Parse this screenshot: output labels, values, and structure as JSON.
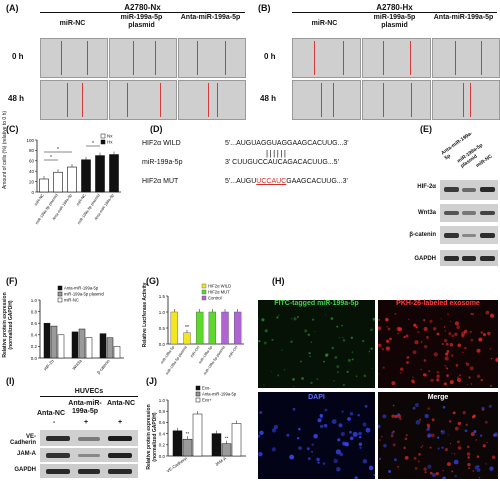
{
  "panels": {
    "A": {
      "label": "(A)",
      "title": "A2780-Nx",
      "cols": [
        "miR-NC",
        "miR-199a-5p plasmid",
        "Anta-miR-199a-5p"
      ],
      "rows": [
        "0 h",
        "48 h"
      ]
    },
    "B": {
      "label": "(B)",
      "title": "A2780-Hx",
      "cols": [
        "miR-NC",
        "miR-199a-5p plasmid",
        "Anta-miR-199a-5p"
      ],
      "rows": [
        "0 h",
        "48 h"
      ]
    },
    "C": {
      "label": "(C)",
      "ylabel": "Amount of cells (%) (relative to 0 h)",
      "legend": [
        "Nx",
        "Hx"
      ],
      "sig": "*"
    },
    "D": {
      "label": "(D)",
      "rows": [
        {
          "name": "HIF2α WILD",
          "seq": "5'...AUGUAGGUAGGAAGCACUUG...3'"
        },
        {
          "name": "",
          "seq": "||||||"
        },
        {
          "name": "miR-199a-5p",
          "seq": "3'  CUUGUCCAUCAGACACUUG...5'"
        },
        {
          "name": "HIF2α MUT",
          "seq_pre": "5'...AUGU",
          "seq_mut": "UCCAUC",
          "seq_post": "GAAGCACUUG...3'"
        }
      ]
    },
    "E": {
      "label": "(E)",
      "cols": [
        "Anta-miR-199a-5p",
        "miR-199a-5p plasmid",
        "miR-NC"
      ],
      "rows": [
        "HIF-2α",
        "Wnt3a",
        "β-catenin",
        "GAPDH"
      ]
    },
    "F": {
      "label": "(F)",
      "ylabel": "Relative protein expression (normalized GAPDH)",
      "legend": [
        "Anta-miR-199a-5p",
        "miR-199a-5p plasmid",
        "miR-NC"
      ],
      "categories": [
        "HIF-2α",
        "Wnt3a",
        "β-catenin"
      ]
    },
    "G": {
      "label": "(G)",
      "ylabel": "Relative Luciferase Activity",
      "legend": [
        "HIF2α WILD",
        "HIF2α MUT",
        "Control"
      ],
      "sig": "**"
    },
    "H": {
      "label": "(H)",
      "tiles": [
        "FITC-tagged miR-199a-5p",
        "PKH-26-labeled exosome",
        "DAPI",
        "Merge"
      ]
    },
    "I": {
      "label": "(I)",
      "header": "HUVECs",
      "cols": [
        "Anta-NC",
        "Anta-miR-199a-5p",
        "Anta-NC"
      ],
      "signs": [
        "-",
        "+",
        "+"
      ],
      "rows": [
        "VE-Cadherin",
        "JAM-A",
        "GAPDH"
      ]
    },
    "J": {
      "label": "(J)",
      "ylabel": "Relative protein expression (normalized GAPDH)",
      "legend": [
        "Exo-",
        "Anta-miR-199a-5p",
        "Exo+"
      ],
      "categories": [
        "VE-Cadherin",
        "JAM-A"
      ],
      "sig": "**"
    }
  },
  "chart_data": [
    {
      "type": "bar",
      "panel": "C",
      "categories": [
        "miR-NC",
        "miR-199a-5p plasmid",
        "Anta-miR-199a-5p",
        "miR-NC",
        "miR-199a-5p plasmid",
        "Anta-miR-199a-5p"
      ],
      "series": [
        {
          "name": "Nx",
          "values": [
            25,
            38,
            48,
            null,
            null,
            null
          ]
        },
        {
          "name": "Hx",
          "values": [
            null,
            null,
            null,
            62,
            70,
            72
          ]
        }
      ],
      "ylim": [
        0,
        100
      ],
      "yticks": [
        0,
        20,
        40,
        60,
        80,
        100
      ]
    },
    {
      "type": "bar",
      "panel": "F",
      "categories": [
        "HIF-2α",
        "Wnt3a",
        "β-catenin"
      ],
      "series": [
        {
          "name": "Anta-miR-199a-5p",
          "values": [
            0.6,
            0.45,
            0.42
          ]
        },
        {
          "name": "miR-199a-5p plasmid",
          "values": [
            0.55,
            0.5,
            0.35
          ]
        },
        {
          "name": "miR-NC",
          "values": [
            0.4,
            0.35,
            0.2
          ]
        }
      ],
      "ylim": [
        0,
        1.0
      ],
      "yticks": [
        0.0,
        0.2,
        0.4,
        0.6,
        0.8,
        1.0
      ]
    },
    {
      "type": "bar",
      "panel": "G",
      "categories": [
        "miR-199a-5p",
        "miR-199a-5p plasmid",
        "miR-Ctrl",
        "miR-199a-5p",
        "miR-199a-5p plasmid",
        "miR-Ctrl"
      ],
      "series": [
        {
          "name": "HIF2α WILD",
          "values": [
            1.0,
            0.35,
            null,
            null,
            null,
            null
          ]
        },
        {
          "name": "HIF2α MUT",
          "values": [
            null,
            null,
            1.0,
            1.0,
            null,
            null
          ]
        },
        {
          "name": "Control",
          "values": [
            null,
            null,
            null,
            null,
            1.0,
            1.0
          ]
        }
      ],
      "ylim": [
        0,
        1.5
      ],
      "yticks": [
        0.0,
        0.5,
        1.0,
        1.5
      ]
    },
    {
      "type": "bar",
      "panel": "J",
      "categories": [
        "VE-Cadherin",
        "JAM-A"
      ],
      "series": [
        {
          "name": "Exo-",
          "values": [
            0.45,
            0.4
          ]
        },
        {
          "name": "Anta-miR-199a-5p",
          "values": [
            0.3,
            0.22
          ]
        },
        {
          "name": "Exo+",
          "values": [
            0.75,
            0.58
          ]
        }
      ],
      "ylim": [
        0,
        1.0
      ],
      "yticks": [
        0.0,
        0.2,
        0.4,
        0.6,
        0.8,
        1.0
      ]
    }
  ]
}
